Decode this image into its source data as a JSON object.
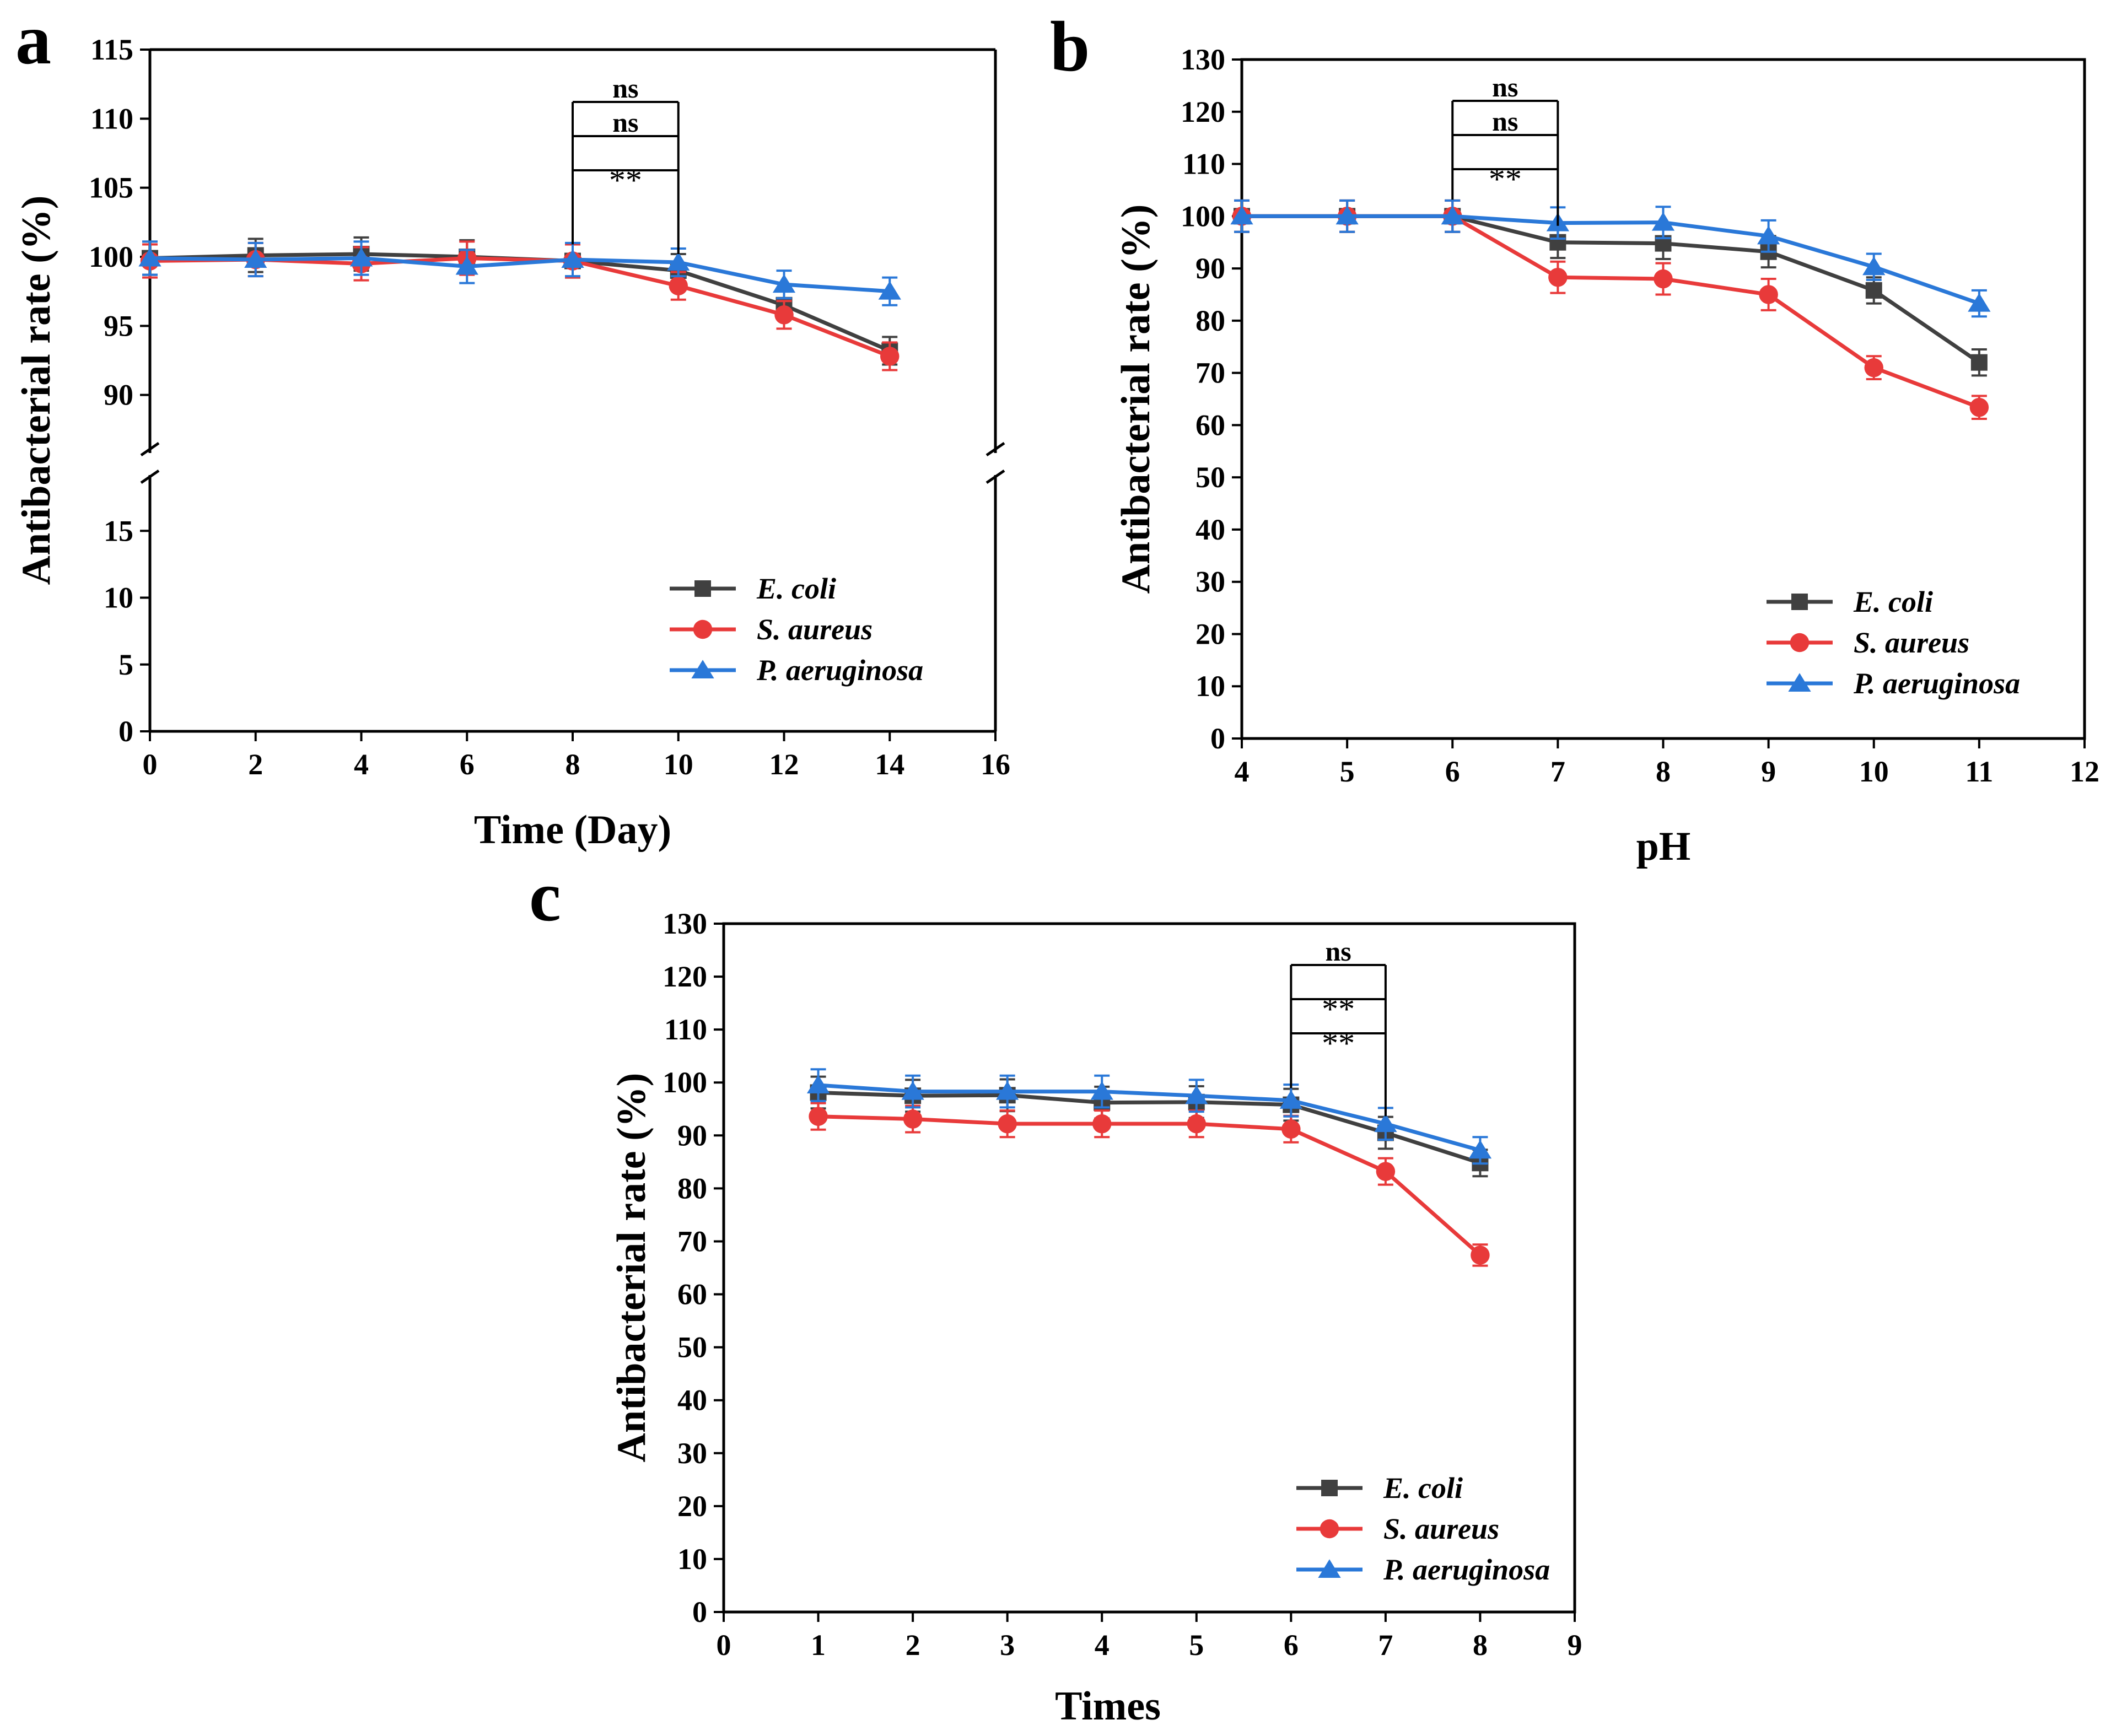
{
  "chart_data": [
    {
      "panel": "a",
      "type": "line",
      "xlabel": "Time (Day)",
      "ylabel": "Antibacterial rate (%)",
      "xlim": [
        0,
        16
      ],
      "xticks": [
        0,
        2,
        4,
        6,
        8,
        10,
        12,
        14,
        16
      ],
      "broken_y_axis": true,
      "ylim_lower": [
        0,
        20
      ],
      "ylim_upper": [
        85,
        115
      ],
      "yticks_lower": [
        0,
        5,
        10,
        15
      ],
      "yticks_upper": [
        90,
        95,
        100,
        105,
        110,
        115
      ],
      "x": [
        0,
        2,
        4,
        6,
        8,
        10,
        12,
        14
      ],
      "series": [
        {
          "name": "E. coli",
          "color": "#404040",
          "marker": "square",
          "values": [
            99.9,
            100.1,
            100.2,
            100.0,
            99.7,
            99.0,
            96.5,
            93.2
          ],
          "errors": [
            1.2,
            1.2,
            1.2,
            1.2,
            1.2,
            1.2,
            1.0,
            1.0
          ]
        },
        {
          "name": "S. aureus",
          "color": "#e83a3a",
          "marker": "circle",
          "values": [
            99.7,
            99.8,
            99.5,
            99.9,
            99.7,
            97.9,
            95.8,
            92.8
          ],
          "errors": [
            1.2,
            1.2,
            1.2,
            1.2,
            1.2,
            1.0,
            1.0,
            1.0
          ]
        },
        {
          "name": "P. aeruginosa",
          "color": "#2a78d8",
          "marker": "triangle",
          "values": [
            99.9,
            99.8,
            99.9,
            99.3,
            99.8,
            99.6,
            98.0,
            97.5
          ],
          "errors": [
            1.2,
            1.2,
            1.2,
            1.2,
            1.2,
            1.0,
            1.0,
            1.0
          ]
        }
      ],
      "significance": {
        "x_start": 8,
        "x_end": 10,
        "labels": [
          "ns",
          "ns",
          "**"
        ]
      },
      "legend_position": "bottom-right"
    },
    {
      "panel": "b",
      "type": "line",
      "xlabel": "pH",
      "ylabel": "Antibacterial rate (%)",
      "xlim": [
        4,
        12
      ],
      "xticks": [
        4,
        5,
        6,
        7,
        8,
        9,
        10,
        11,
        12
      ],
      "ylim": [
        0,
        130
      ],
      "yticks": [
        0,
        10,
        20,
        30,
        40,
        50,
        60,
        70,
        80,
        90,
        100,
        110,
        120,
        130
      ],
      "x": [
        4,
        5,
        6,
        7,
        8,
        9,
        10,
        11
      ],
      "series": [
        {
          "name": "E. coli",
          "color": "#404040",
          "marker": "square",
          "values": [
            100,
            100,
            100,
            95,
            94.8,
            93.2,
            85.8,
            72
          ],
          "errors": [
            3,
            3,
            3,
            3,
            3,
            3,
            2.5,
            2.5
          ]
        },
        {
          "name": "S. aureus",
          "color": "#e83a3a",
          "marker": "circle",
          "values": [
            100,
            100,
            100,
            88.3,
            88,
            85,
            71,
            63.4
          ],
          "errors": [
            3,
            3,
            3,
            3,
            3,
            3,
            2.2,
            2.2
          ]
        },
        {
          "name": "P. aeruginosa",
          "color": "#2a78d8",
          "marker": "triangle",
          "values": [
            100,
            100,
            100,
            98.7,
            98.8,
            96.2,
            90.3,
            83.3
          ],
          "errors": [
            3,
            3,
            3,
            3,
            3,
            3,
            2.5,
            2.5
          ]
        }
      ],
      "significance": {
        "x_start": 6,
        "x_end": 7,
        "labels": [
          "ns",
          "ns",
          "**"
        ]
      },
      "legend_position": "bottom-right"
    },
    {
      "panel": "c",
      "type": "line",
      "xlabel": "Times",
      "ylabel": "Antibacterial rate (%)",
      "xlim": [
        0,
        9
      ],
      "xticks": [
        0,
        1,
        2,
        3,
        4,
        5,
        6,
        7,
        8,
        9
      ],
      "ylim": [
        0,
        130
      ],
      "yticks": [
        0,
        10,
        20,
        30,
        40,
        50,
        60,
        70,
        80,
        90,
        100,
        110,
        120,
        130
      ],
      "x": [
        1,
        2,
        3,
        4,
        5,
        6,
        7,
        8
      ],
      "series": [
        {
          "name": "E. coli",
          "color": "#404040",
          "marker": "square",
          "values": [
            98.1,
            97.5,
            97.6,
            96.2,
            96.3,
            95.8,
            90.5,
            84.8
          ],
          "errors": [
            3,
            3,
            3,
            3,
            3,
            3,
            3,
            2.5
          ]
        },
        {
          "name": "S. aureus",
          "color": "#e83a3a",
          "marker": "circle",
          "values": [
            93.6,
            93.1,
            92.2,
            92.2,
            92.2,
            91.2,
            83.2,
            67.4
          ],
          "errors": [
            2.5,
            2.5,
            2.5,
            2.5,
            2.5,
            2.5,
            2.5,
            2
          ]
        },
        {
          "name": "P. aeruginosa",
          "color": "#2a78d8",
          "marker": "triangle",
          "values": [
            99.5,
            98.3,
            98.3,
            98.3,
            97.5,
            96.6,
            92.2,
            87.2
          ],
          "errors": [
            3,
            3,
            3,
            3,
            3,
            3,
            3,
            2.5
          ]
        }
      ],
      "significance": {
        "x_start": 6,
        "x_end": 7,
        "labels": [
          "ns",
          "**",
          "**"
        ]
      },
      "legend_position": "bottom-right"
    }
  ]
}
